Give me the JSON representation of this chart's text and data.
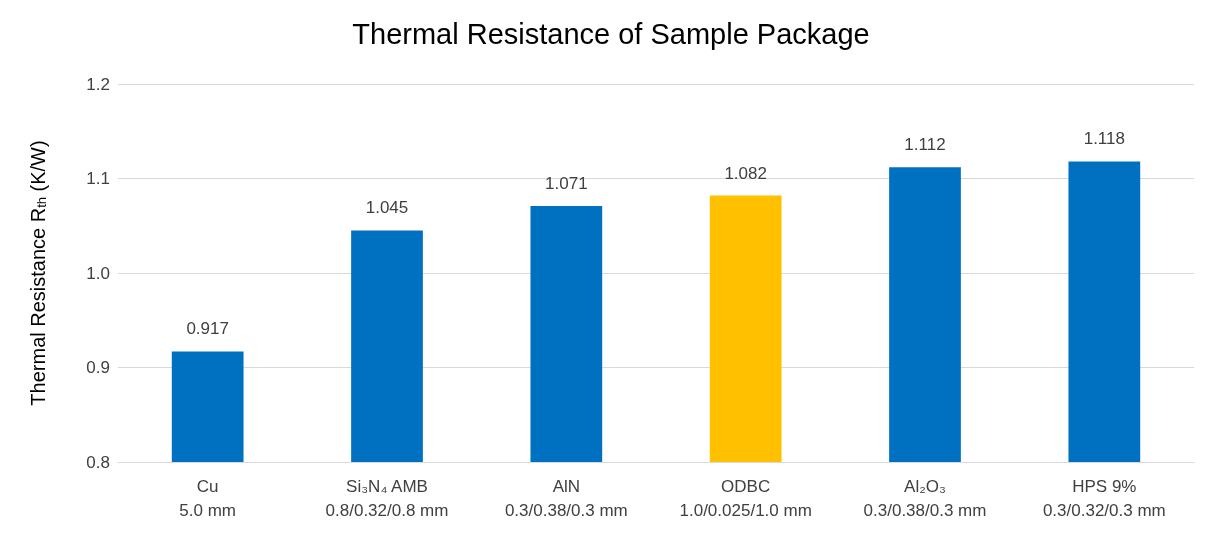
{
  "chart_data": {
    "type": "bar",
    "title": "Thermal Resistance of Sample Package",
    "ylabel": "Thermal Resistance R$_{th}$ (K/W)",
    "categories": [
      "Cu\n5.0 mm",
      "Si₃N₄ AMB\n0.8/0.32/0.8 mm",
      "AlN\n0.3/0.38/0.3 mm",
      "ODBC\n1.0/0.025/1.0 mm",
      "Al₂O₃\n0.3/0.38/0.3 mm",
      "HPS 9%\n0.3/0.32/0.3 mm"
    ],
    "values": [
      0.917,
      1.045,
      1.071,
      1.082,
      1.112,
      1.118
    ],
    "colors": [
      "#0070c0",
      "#0070c0",
      "#0070c0",
      "#ffc000",
      "#0070c0",
      "#0070c0"
    ],
    "ylim": [
      0.8,
      1.2
    ],
    "yticks": [
      0.8,
      0.9,
      {
        "value": 1,
        "label": "1.0"
      },
      1.1,
      1.2
    ],
    "grid": "y",
    "data_labels": true
  }
}
